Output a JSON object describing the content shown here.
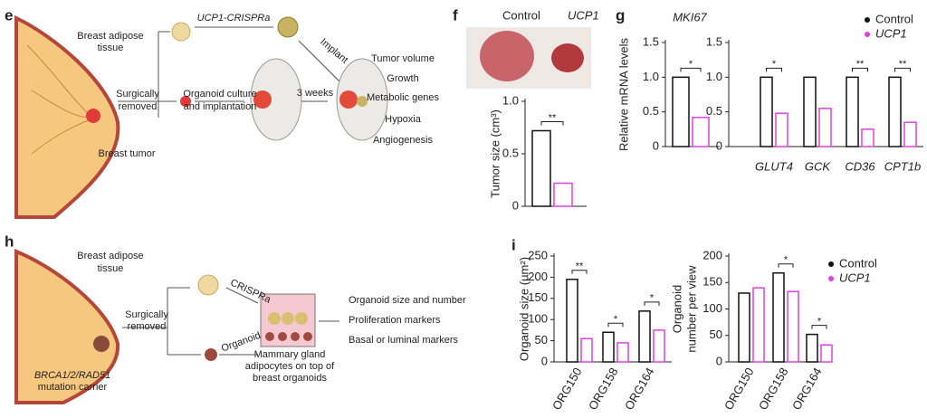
{
  "panels": {
    "e": {
      "label": "e",
      "adipose": [
        "Breast adipose",
        "tissue"
      ],
      "crispra": "UCP1-CRISPRa",
      "implant": "Implant",
      "removed": [
        "Surgically",
        "removed"
      ],
      "culture": [
        "Organoid culture",
        "and implantation"
      ],
      "weeks": "3 weeks",
      "tumor": "Breast tumor",
      "outcomes": [
        "Tumor volume",
        "Growth",
        "Metabolic genes",
        "Hypoxia",
        "Angiogenesis"
      ]
    },
    "f": {
      "label": "f"
    },
    "g": {
      "label": "g"
    },
    "h": {
      "label": "h",
      "adipose": [
        "Breast adipose",
        "tissue"
      ],
      "crispra": "CRISPRa",
      "removed": [
        "Surgically",
        "removed"
      ],
      "organoid": "Organoid",
      "well": [
        "Mammary gland",
        "adipocytes on top of",
        "breast organoids"
      ],
      "carrier": [
        "BRCA1/2/RAD51",
        "mutation carrier"
      ],
      "outcomes": [
        "Organoid size and number",
        "Proliferation markers",
        "Basal or luminal markers"
      ]
    },
    "i": {
      "label": "i"
    }
  },
  "chart_data": [
    {
      "type": "bar",
      "ylabel": "Tumor size (cm³)",
      "ylim": [
        0,
        1
      ],
      "yticks": [
        0,
        0.5,
        {
          "value": 1,
          "label": "1.0"
        }
      ],
      "annotations": [
        "**"
      ],
      "series": [
        {
          "name": "Control",
          "color": "#111111",
          "values": [
            0.72
          ]
        },
        {
          "name": "UCP1",
          "color": "#e040e0",
          "values": [
            0.22
          ]
        }
      ]
    },
    {
      "type": "bar",
      "title": "MKI67",
      "ylabel": "Relative mRNA levels",
      "ylim": [
        0,
        1.5
      ],
      "yticks": [
        0,
        0.5,
        {
          "value": 1,
          "label": "1.0"
        },
        1.5
      ],
      "annotations": [
        "*"
      ],
      "series": [
        {
          "color": "#111111",
          "values": [
            1.0
          ]
        },
        {
          "color": "#e040e0",
          "values": [
            0.42
          ]
        }
      ]
    },
    {
      "type": "bar",
      "categories": [
        "GLUT4",
        "GCK",
        "CD36",
        "CPT1b"
      ],
      "ylim": [
        0,
        1.5
      ],
      "yticks": [
        0,
        0.5,
        {
          "value": 1,
          "label": "1.0"
        },
        1.5
      ],
      "annotations": [
        "*",
        null,
        "**",
        "**"
      ],
      "legend": "upper right",
      "series": [
        {
          "name": "Control",
          "color": "#111111",
          "values": [
            1.0,
            1.0,
            1.0,
            1.0
          ]
        },
        {
          "name": "UCP1",
          "color": "#e040e0",
          "values": [
            0.48,
            0.55,
            0.25,
            0.35
          ]
        }
      ]
    },
    {
      "type": "bar",
      "categories": [
        "ORG150",
        "ORG158",
        "ORG164"
      ],
      "ylabel": "Organoid size (µm²)",
      "ylim": [
        0,
        250
      ],
      "yticks": [
        0,
        50,
        100,
        150,
        200,
        250
      ],
      "annotations": [
        "**",
        "*",
        "*"
      ],
      "series": [
        {
          "color": "#111111",
          "values": [
            195,
            70,
            120
          ]
        },
        {
          "color": "#e040e0",
          "values": [
            55,
            45,
            75
          ]
        }
      ]
    },
    {
      "type": "bar",
      "categories": [
        "ORG150",
        "ORG158",
        "ORG164"
      ],
      "ylabel": [
        "Organoid",
        "number per view"
      ],
      "ylim": [
        0,
        200
      ],
      "yticks": [
        0,
        50,
        100,
        150,
        200
      ],
      "annotations": [
        null,
        "*",
        "*"
      ],
      "legend": "upper right",
      "series": [
        {
          "name": "Control",
          "color": "#111111",
          "values": [
            130,
            168,
            52
          ]
        },
        {
          "name": "UCP1",
          "color": "#e040e0",
          "values": [
            140,
            133,
            32
          ]
        }
      ]
    }
  ]
}
